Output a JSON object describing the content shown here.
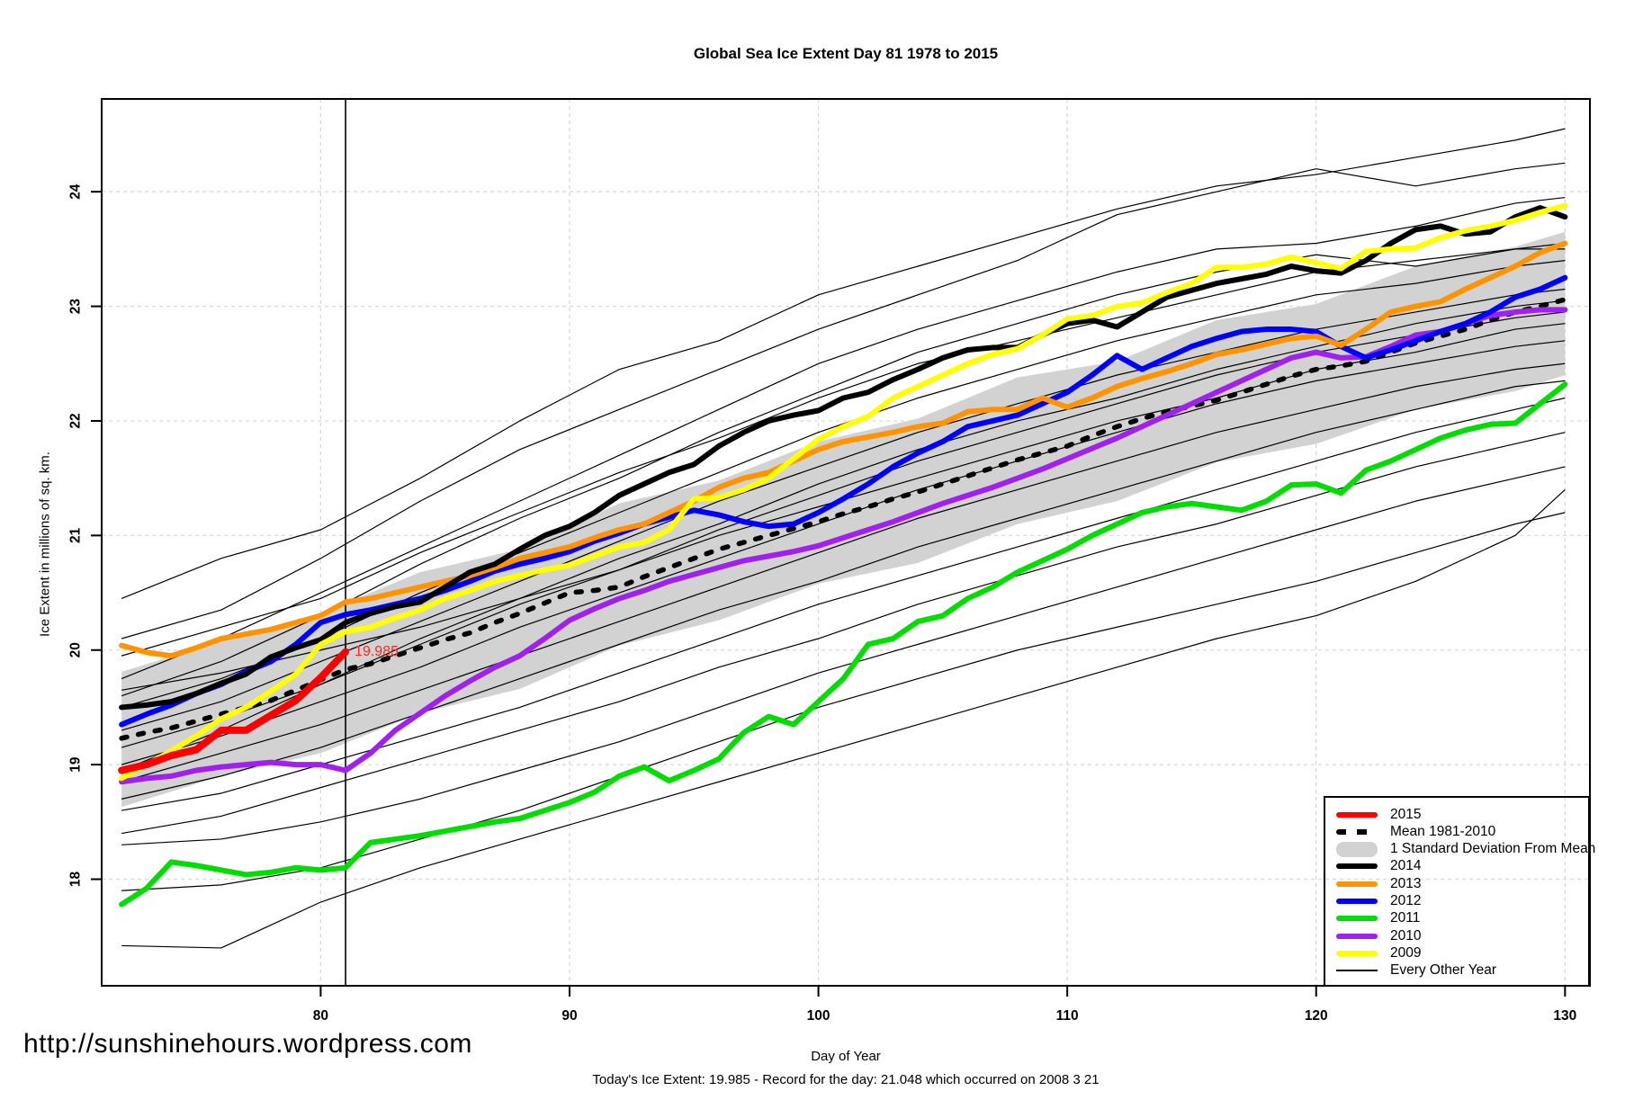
{
  "title": "Global Sea Ice Extent Day 81 1978 to 2015",
  "footer": {
    "url": "http://sunshinehours.wordpress.com",
    "note": "Today's Ice Extent: 19.985  - Record for the day: 21.048 which occurred on 2008 3 21"
  },
  "annotation": {
    "text": "19.985",
    "day": 81,
    "value": 19.985,
    "color": "#f82a1e"
  },
  "axes": {
    "x_label": "Day of Year",
    "y_label": "Ice Extent in millions of sq. km.",
    "x_ticks": [
      80,
      90,
      100,
      110,
      120,
      130
    ],
    "y_ticks": [
      18,
      19,
      20,
      21,
      22,
      23,
      24
    ],
    "x_domain": [
      71.2,
      131.0
    ],
    "y_domain": [
      17.07,
      24.81
    ],
    "vline_x": 81,
    "grid_color": "#d9d9d9",
    "border_color": "#000000"
  },
  "legend": {
    "items": [
      {
        "label": "2015",
        "color": "#ff0000",
        "style": "line"
      },
      {
        "label": "Mean 1981-2010",
        "color": "#000000",
        "style": "dash"
      },
      {
        "label": "1 Standard Deviation From Mean",
        "color": "#d2d2d2",
        "style": "band"
      },
      {
        "label": "2014",
        "color": "#000000",
        "style": "line"
      },
      {
        "label": "2013",
        "color": "#ff9300",
        "style": "line"
      },
      {
        "label": "2012",
        "color": "#0000ff",
        "style": "line"
      },
      {
        "label": "2011",
        "color": "#00dd00",
        "style": "line"
      },
      {
        "label": "2010",
        "color": "#a020f0",
        "style": "line"
      },
      {
        "label": "2009",
        "color": "#ffff00",
        "style": "line"
      },
      {
        "label": "Every Other Year",
        "color": "#000000",
        "style": "thin"
      }
    ]
  },
  "chart_data": {
    "type": "line",
    "title": "Global Sea Ice Extent Day 81 1978 to 2015",
    "xlabel": "Day of Year",
    "ylabel": "Ice Extent in millions of sq. km.",
    "xlim": [
      71.2,
      131.0
    ],
    "ylim": [
      17.07,
      24.81
    ],
    "grid": true,
    "legend_position": "bottom-right",
    "days": [
      72,
      73,
      74,
      75,
      76,
      77,
      78,
      79,
      80,
      81,
      82,
      83,
      84,
      85,
      86,
      87,
      88,
      89,
      90,
      91,
      92,
      93,
      94,
      95,
      96,
      97,
      98,
      99,
      100,
      101,
      102,
      103,
      104,
      105,
      106,
      107,
      108,
      109,
      110,
      111,
      112,
      113,
      114,
      115,
      116,
      117,
      118,
      119,
      120,
      121,
      122,
      123,
      124,
      125,
      126,
      127,
      128,
      129,
      130
    ],
    "band": {
      "name": "1 Standard Deviation From Mean",
      "fill": "#d2d2d2",
      "x": [
        72,
        76,
        80,
        84,
        88,
        92,
        96,
        100,
        104,
        108,
        112,
        116,
        120,
        124,
        128,
        130
      ],
      "top": [
        19.81,
        20.08,
        20.32,
        20.68,
        20.88,
        21.28,
        21.48,
        21.82,
        22.02,
        22.38,
        22.52,
        22.88,
        23.02,
        23.35,
        23.52,
        23.65
      ],
      "bottom": [
        18.63,
        18.9,
        19.1,
        19.45,
        19.66,
        20.04,
        20.26,
        20.58,
        20.76,
        21.1,
        21.3,
        21.64,
        21.8,
        22.1,
        22.26,
        22.4
      ]
    },
    "series": [
      {
        "name": "Mean 1981-2010",
        "color": "#000000",
        "width": 5.5,
        "dash": "6 13",
        "y": [
          19.23,
          19.28,
          19.32,
          19.38,
          19.44,
          19.5,
          19.56,
          19.65,
          19.74,
          19.83,
          19.88,
          19.95,
          20.02,
          20.09,
          20.15,
          20.24,
          20.32,
          20.41,
          20.5,
          20.52,
          20.55,
          20.64,
          20.72,
          20.8,
          20.88,
          20.94,
          21.0,
          21.06,
          21.12,
          21.19,
          21.25,
          21.32,
          21.38,
          21.45,
          21.52,
          21.59,
          21.66,
          21.72,
          21.78,
          21.87,
          21.95,
          22.02,
          22.08,
          22.13,
          22.18,
          22.25,
          22.32,
          22.39,
          22.45,
          22.48,
          22.52,
          22.6,
          22.68,
          22.74,
          22.8,
          22.88,
          22.95,
          23.0,
          23.06
        ]
      },
      {
        "name": "2011",
        "color": "#00dd00",
        "width": 6,
        "y": [
          17.78,
          17.92,
          18.15,
          18.12,
          18.08,
          18.04,
          18.06,
          18.1,
          18.08,
          18.1,
          18.32,
          18.35,
          18.38,
          18.42,
          18.46,
          18.5,
          18.53,
          18.6,
          18.67,
          18.76,
          18.9,
          18.98,
          18.86,
          18.95,
          19.05,
          19.28,
          19.42,
          19.35,
          19.55,
          19.75,
          20.05,
          20.1,
          20.25,
          20.3,
          20.45,
          20.55,
          20.68,
          20.78,
          20.88,
          21.0,
          21.1,
          21.2,
          21.25,
          21.28,
          21.25,
          21.22,
          21.3,
          21.44,
          21.45,
          21.37,
          21.57,
          21.65,
          21.75,
          21.85,
          21.92,
          21.97,
          21.98,
          22.15,
          22.32
        ]
      },
      {
        "name": "2010",
        "color": "#a020f0",
        "width": 6,
        "y": [
          18.85,
          18.88,
          18.9,
          18.95,
          18.98,
          19.0,
          19.02,
          19.0,
          19.0,
          18.95,
          19.1,
          19.3,
          19.45,
          19.6,
          19.73,
          19.85,
          19.95,
          20.1,
          20.26,
          20.36,
          20.45,
          20.52,
          20.6,
          20.66,
          20.72,
          20.78,
          20.82,
          20.86,
          20.91,
          20.98,
          21.05,
          21.12,
          21.2,
          21.28,
          21.35,
          21.42,
          21.5,
          21.58,
          21.67,
          21.76,
          21.85,
          21.95,
          22.05,
          22.15,
          22.25,
          22.35,
          22.45,
          22.55,
          22.6,
          22.55,
          22.56,
          22.65,
          22.75,
          22.78,
          22.85,
          22.92,
          22.95,
          22.97,
          22.97
        ]
      },
      {
        "name": "2012",
        "color": "#0000ff",
        "width": 6,
        "y": [
          19.35,
          19.44,
          19.52,
          19.62,
          19.7,
          19.81,
          19.9,
          20.05,
          20.24,
          20.31,
          20.35,
          20.4,
          20.45,
          20.52,
          20.6,
          20.69,
          20.75,
          20.8,
          20.86,
          20.95,
          21.02,
          21.1,
          21.16,
          21.22,
          21.18,
          21.12,
          21.08,
          21.1,
          21.2,
          21.32,
          21.45,
          21.6,
          21.72,
          21.82,
          21.95,
          22.0,
          22.05,
          22.15,
          22.25,
          22.4,
          22.57,
          22.45,
          22.55,
          22.65,
          22.72,
          22.78,
          22.8,
          22.8,
          22.78,
          22.65,
          22.55,
          22.62,
          22.7,
          22.78,
          22.85,
          22.95,
          23.08,
          23.15,
          23.25
        ]
      },
      {
        "name": "2013",
        "color": "#ff9300",
        "width": 6,
        "y": [
          20.04,
          19.98,
          19.95,
          20.02,
          20.1,
          20.14,
          20.18,
          20.24,
          20.3,
          20.42,
          20.45,
          20.5,
          20.55,
          20.6,
          20.65,
          20.72,
          20.8,
          20.85,
          20.9,
          20.98,
          21.05,
          21.1,
          21.2,
          21.3,
          21.42,
          21.5,
          21.55,
          21.65,
          21.75,
          21.82,
          21.86,
          21.9,
          21.95,
          21.98,
          22.08,
          22.1,
          22.1,
          22.2,
          22.12,
          22.2,
          22.3,
          22.37,
          22.43,
          22.5,
          22.58,
          22.62,
          22.67,
          22.72,
          22.74,
          22.66,
          22.8,
          22.95,
          23.0,
          23.04,
          23.15,
          23.25,
          23.35,
          23.47,
          23.55
        ]
      },
      {
        "name": "2014",
        "color": "#000000",
        "width": 6,
        "y": [
          19.5,
          19.52,
          19.55,
          19.62,
          19.71,
          19.79,
          19.94,
          20.02,
          20.09,
          20.24,
          20.32,
          20.38,
          20.42,
          20.55,
          20.68,
          20.75,
          20.88,
          21.0,
          21.08,
          21.2,
          21.35,
          21.45,
          21.55,
          21.62,
          21.78,
          21.9,
          22.0,
          22.05,
          22.09,
          22.2,
          22.25,
          22.36,
          22.45,
          22.55,
          22.62,
          22.64,
          22.64,
          22.75,
          22.85,
          22.88,
          22.82,
          22.95,
          23.08,
          23.14,
          23.2,
          23.24,
          23.28,
          23.35,
          23.31,
          23.29,
          23.4,
          23.55,
          23.67,
          23.7,
          23.63,
          23.65,
          23.78,
          23.86,
          23.78
        ]
      },
      {
        "name": "2009",
        "color": "#ffff00",
        "width": 6,
        "y": [
          18.88,
          19.0,
          19.12,
          19.25,
          19.4,
          19.5,
          19.64,
          19.79,
          20.05,
          20.16,
          20.2,
          20.28,
          20.35,
          20.45,
          20.52,
          20.6,
          20.65,
          20.7,
          20.74,
          20.82,
          20.9,
          20.94,
          21.05,
          21.32,
          21.33,
          21.4,
          21.5,
          21.67,
          21.84,
          21.95,
          22.04,
          22.2,
          22.3,
          22.4,
          22.5,
          22.58,
          22.63,
          22.75,
          22.89,
          22.92,
          23.0,
          23.03,
          23.12,
          23.2,
          23.34,
          23.34,
          23.37,
          23.43,
          23.38,
          23.33,
          23.48,
          23.5,
          23.51,
          23.6,
          23.66,
          23.7,
          23.75,
          23.82,
          23.88
        ]
      },
      {
        "name": "2015",
        "color": "#ff0000",
        "width": 8,
        "x": [
          72,
          73,
          74,
          75,
          76,
          77,
          78,
          79,
          80,
          81
        ],
        "y": [
          18.95,
          19.0,
          19.08,
          19.13,
          19.3,
          19.3,
          19.43,
          19.56,
          19.76,
          19.985
        ]
      }
    ],
    "other_years": {
      "name": "Every Other Year",
      "color": "#000000",
      "width": 1.2,
      "x": [
        72,
        76,
        80,
        84,
        88,
        92,
        96,
        100,
        104,
        108,
        112,
        116,
        120,
        124,
        128,
        130
      ],
      "lines": [
        [
          20.45,
          20.8,
          21.05,
          21.5,
          22.0,
          22.45,
          22.7,
          23.1,
          23.35,
          23.6,
          23.85,
          24.05,
          24.15,
          24.3,
          24.45,
          24.55
        ],
        [
          20.1,
          20.35,
          20.8,
          21.3,
          21.75,
          22.1,
          22.45,
          22.8,
          23.1,
          23.4,
          23.8,
          24.0,
          24.2,
          24.05,
          24.2,
          24.25
        ],
        [
          19.75,
          20.1,
          20.5,
          20.9,
          21.3,
          21.7,
          22.1,
          22.5,
          22.8,
          23.05,
          23.3,
          23.5,
          23.55,
          23.7,
          23.9,
          23.95
        ],
        [
          19.6,
          19.9,
          20.3,
          20.75,
          21.15,
          21.5,
          21.9,
          22.25,
          22.6,
          22.85,
          23.1,
          23.3,
          23.45,
          23.35,
          23.5,
          23.55
        ],
        [
          19.95,
          20.2,
          20.45,
          20.85,
          21.2,
          21.55,
          21.85,
          22.2,
          22.5,
          22.7,
          22.9,
          23.1,
          23.3,
          23.4,
          23.5,
          23.5
        ],
        [
          19.5,
          19.75,
          20.1,
          20.5,
          20.85,
          21.2,
          21.55,
          21.9,
          22.2,
          22.45,
          22.7,
          22.9,
          23.1,
          23.2,
          23.35,
          23.4
        ],
        [
          19.3,
          19.55,
          19.9,
          20.25,
          20.6,
          20.95,
          21.3,
          21.6,
          21.9,
          22.15,
          22.4,
          22.6,
          22.8,
          22.95,
          23.1,
          23.15
        ],
        [
          19.15,
          19.4,
          19.7,
          20.05,
          20.4,
          20.7,
          21.05,
          21.35,
          21.65,
          21.9,
          22.15,
          22.4,
          22.6,
          22.75,
          22.9,
          22.95
        ],
        [
          19.0,
          19.25,
          19.55,
          19.85,
          20.2,
          20.5,
          20.8,
          21.1,
          21.4,
          21.65,
          21.9,
          22.15,
          22.35,
          22.5,
          22.65,
          22.7
        ],
        [
          18.85,
          19.1,
          19.35,
          19.65,
          19.95,
          20.25,
          20.55,
          20.85,
          21.15,
          21.4,
          21.65,
          21.9,
          22.1,
          22.3,
          22.45,
          22.5
        ],
        [
          18.7,
          18.9,
          19.15,
          19.45,
          19.75,
          20.05,
          20.35,
          20.6,
          20.9,
          21.15,
          21.4,
          21.65,
          21.9,
          22.1,
          22.3,
          22.35
        ],
        [
          18.6,
          18.75,
          19.0,
          19.25,
          19.5,
          19.8,
          20.1,
          20.4,
          20.65,
          20.9,
          21.15,
          21.4,
          21.65,
          21.9,
          22.1,
          22.2
        ],
        [
          18.4,
          18.55,
          18.8,
          19.05,
          19.3,
          19.55,
          19.85,
          20.1,
          20.4,
          20.65,
          20.9,
          21.1,
          21.35,
          21.6,
          21.8,
          21.9
        ],
        [
          18.3,
          18.35,
          18.5,
          18.7,
          18.95,
          19.2,
          19.5,
          19.8,
          20.05,
          20.3,
          20.55,
          20.8,
          21.05,
          21.3,
          21.5,
          21.6
        ],
        [
          17.9,
          17.95,
          18.1,
          18.35,
          18.6,
          18.9,
          19.2,
          19.5,
          19.75,
          20.0,
          20.2,
          20.4,
          20.6,
          20.85,
          21.1,
          21.2
        ],
        [
          17.42,
          17.4,
          17.8,
          18.1,
          18.35,
          18.6,
          18.85,
          19.1,
          19.35,
          19.6,
          19.85,
          20.1,
          20.3,
          20.6,
          21.0,
          21.4
        ],
        [
          18.95,
          19.3,
          19.7,
          20.1,
          20.45,
          20.8,
          21.1,
          21.45,
          21.75,
          22.0,
          22.2,
          22.45,
          22.65,
          22.85,
          23.0,
          23.05
        ],
        [
          19.65,
          19.8,
          20.0,
          20.2,
          20.45,
          20.7,
          21.0,
          21.25,
          21.5,
          21.75,
          22.0,
          22.2,
          22.45,
          22.6,
          22.8,
          22.85
        ]
      ]
    }
  }
}
